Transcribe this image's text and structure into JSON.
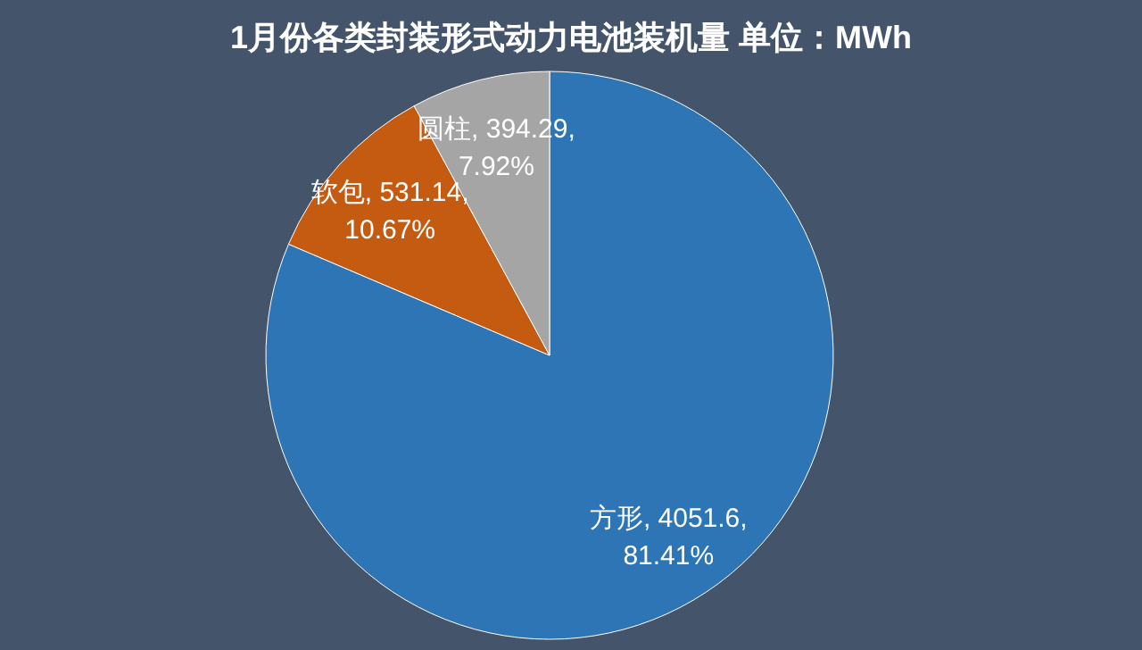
{
  "chart_data": {
    "type": "pie",
    "title": "1月份各类封装形式动力电池装机量  单位：MWh",
    "categories": [
      "方形",
      "软包",
      "圆柱"
    ],
    "values": [
      4051.6,
      531.14,
      394.29
    ],
    "colors": [
      "#2e75b6",
      "#c55a11",
      "#a5a5a5"
    ],
    "value_labels": [
      ", 4051.6, 81.41%",
      ", 531.14, 10.67%",
      ", 394.29, 7.92%"
    ],
    "legend": false
  }
}
